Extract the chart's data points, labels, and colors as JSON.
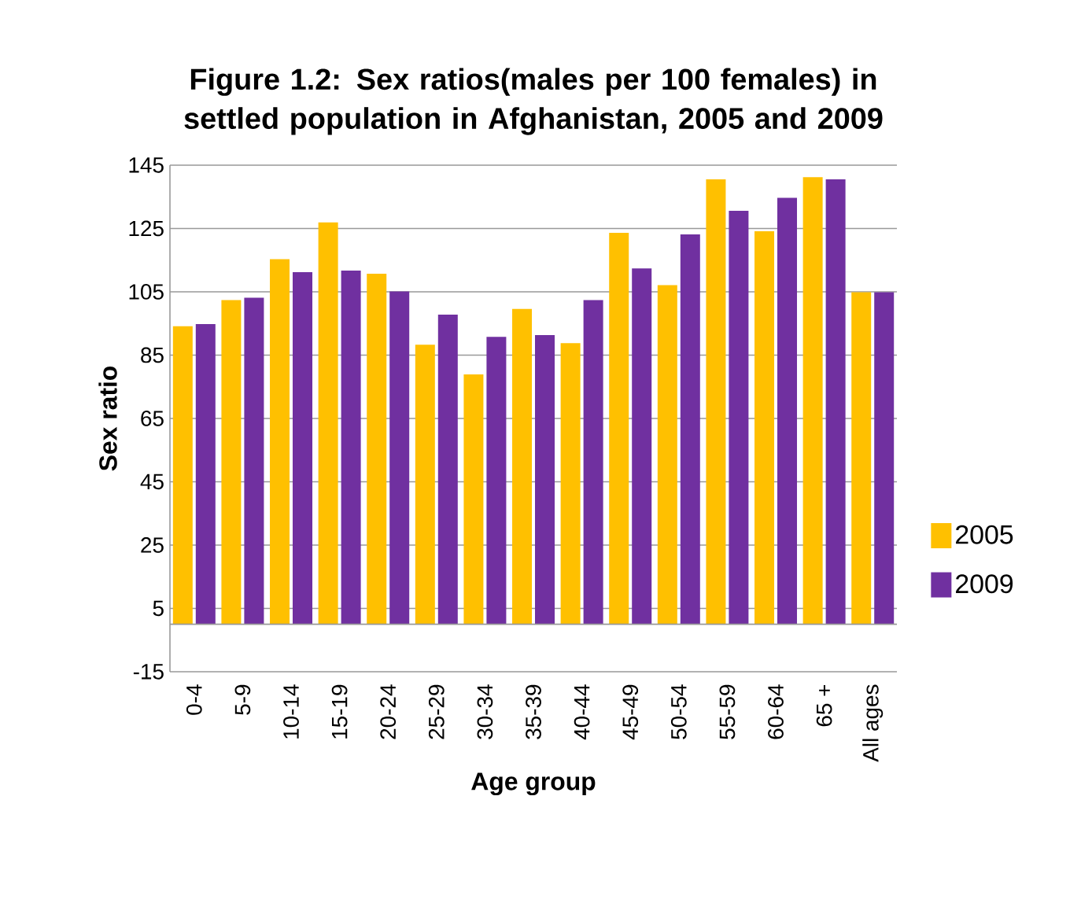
{
  "chart_data": {
    "type": "bar",
    "title": "Figure 1.2: Sex ratios(males per 100 females) in settled population in Afghanistan, 2005 and 2009",
    "xlabel": "Age group",
    "ylabel": "Sex ratio",
    "categories": [
      "0-4",
      "5-9",
      "10-14",
      "15-19",
      "20-24",
      "25-29",
      "30-34",
      "35-39",
      "40-44",
      "45-49",
      "50-54",
      "55-59",
      "60-64",
      "65 +",
      "All ages"
    ],
    "series": [
      {
        "name": "2005",
        "color": "#ffc000",
        "values": [
          94.1,
          102.4,
          115.3,
          126.9,
          110.7,
          88.3,
          78.9,
          99.6,
          88.8,
          123.6,
          107.1,
          140.5,
          124.1,
          141.2,
          104.9
        ]
      },
      {
        "name": "2009",
        "color": "#7030a0",
        "values": [
          94.8,
          103.1,
          111.2,
          111.7,
          105.1,
          97.8,
          90.8,
          91.3,
          102.4,
          112.4,
          123.1,
          130.6,
          134.7,
          140.5,
          104.9
        ]
      }
    ],
    "ylim": [
      -15,
      145
    ],
    "yticks": [
      -15,
      5,
      25,
      45,
      65,
      85,
      105,
      125,
      145
    ],
    "grid": "y",
    "legend": "right"
  }
}
